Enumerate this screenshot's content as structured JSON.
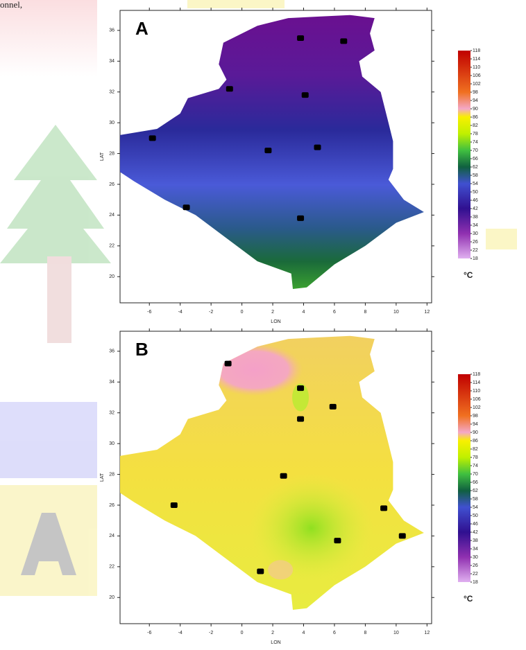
{
  "fragment": "onnel,",
  "chart_data": [
    {
      "type": "map",
      "panel_label": "A",
      "x_label": "LON",
      "y_label": "LAT",
      "x": [
        3.8,
        6.6,
        -0.8,
        4.1,
        -5.8,
        1.7,
        4.9,
        -3.6,
        3.8
      ],
      "values": [
        35.5,
        35.3,
        32.2,
        31.8,
        29.0,
        28.2,
        28.4,
        24.5,
        23.8
      ],
      "xlim": [
        -7.9,
        12.3
      ],
      "ylim": [
        18.3,
        37.3
      ],
      "xticks": [
        -6,
        -4,
        -2,
        0,
        2,
        4,
        6,
        8,
        10,
        12
      ],
      "yticks": [
        20,
        22,
        24,
        26,
        28,
        30,
        32,
        34,
        36
      ],
      "colorbar": {
        "range": [
          18,
          118
        ],
        "ticks": [
          18,
          22,
          26,
          30,
          34,
          38,
          42,
          46,
          50,
          54,
          58,
          62,
          66,
          70,
          74,
          78,
          82,
          86,
          90,
          94,
          98,
          102,
          106,
          110,
          114,
          118
        ],
        "unit": "°C"
      }
    },
    {
      "type": "map",
      "panel_label": "B",
      "x_label": "LON",
      "y_label": "LAT",
      "x": [
        -0.9,
        3.8,
        5.9,
        3.8,
        2.7,
        -4.4,
        9.2,
        6.2,
        10.4,
        1.2
      ],
      "values": [
        35.2,
        33.6,
        32.4,
        31.6,
        27.9,
        26.0,
        25.8,
        23.7,
        24.0,
        21.7
      ],
      "xlim": [
        -7.9,
        12.3
      ],
      "ylim": [
        18.3,
        37.3
      ],
      "xticks": [
        -6,
        -4,
        -2,
        0,
        2,
        4,
        6,
        8,
        10,
        12
      ],
      "yticks": [
        20,
        22,
        24,
        26,
        28,
        30,
        32,
        34,
        36
      ],
      "colorbar": {
        "range": [
          18,
          118
        ],
        "ticks": [
          18,
          22,
          26,
          30,
          34,
          38,
          42,
          46,
          50,
          54,
          58,
          62,
          66,
          70,
          74,
          78,
          82,
          86,
          90,
          94,
          98,
          102,
          106,
          110,
          114,
          118
        ],
        "unit": "°C"
      }
    }
  ]
}
